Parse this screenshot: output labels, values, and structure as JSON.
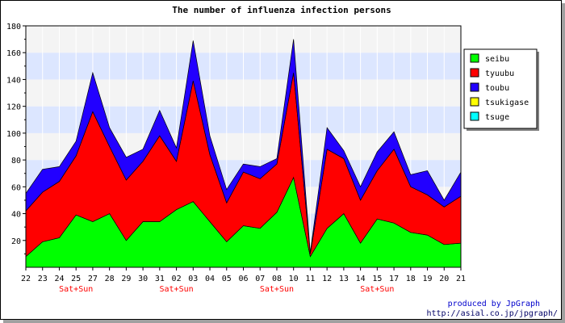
{
  "chart_data": {
    "type": "area",
    "stacked": true,
    "title": "The number of influenza infection persons",
    "xlabel": "",
    "ylabel": "",
    "ylim": [
      0,
      180
    ],
    "yticks": [
      20,
      40,
      60,
      80,
      100,
      120,
      140,
      160,
      180
    ],
    "categories": [
      "22",
      "23",
      "24",
      "25",
      "27",
      "28",
      "29",
      "30",
      "31",
      "02",
      "03",
      "04",
      "05",
      "06",
      "07",
      "08",
      "10",
      "11",
      "12",
      "13",
      "14",
      "15",
      "17",
      "18",
      "19",
      "20",
      "21"
    ],
    "x_annotations": [
      {
        "index": 3,
        "label": "Sat+Sun"
      },
      {
        "index": 9,
        "label": "Sat+Sun"
      },
      {
        "index": 15,
        "label": "Sat+Sun"
      },
      {
        "index": 21,
        "label": "Sat+Sun"
      }
    ],
    "series": [
      {
        "name": "seibu",
        "color": "#00ff00",
        "values": [
          8,
          19,
          22,
          39,
          34,
          40,
          20,
          34,
          34,
          43,
          49,
          34,
          19,
          31,
          29,
          41,
          67,
          8,
          29,
          40,
          18,
          36,
          33,
          26,
          24,
          17,
          18
        ]
      },
      {
        "name": "tyuubu",
        "color": "#ff0000",
        "values": [
          34,
          37,
          42,
          44,
          82,
          50,
          45,
          45,
          64,
          36,
          90,
          50,
          29,
          40,
          37,
          36,
          78,
          2,
          59,
          41,
          32,
          36,
          55,
          34,
          30,
          28,
          35
        ]
      },
      {
        "name": "toubu",
        "color": "#2200ff",
        "values": [
          13,
          17,
          11,
          11,
          29,
          14,
          17,
          9,
          19,
          10,
          30,
          14,
          10,
          6,
          9,
          4,
          25,
          1,
          16,
          6,
          10,
          14,
          13,
          9,
          18,
          5,
          18
        ]
      },
      {
        "name": "tsukigase",
        "color": "#ffff00",
        "values": [
          0,
          0,
          0,
          0,
          0,
          0,
          0,
          0,
          0,
          0,
          0,
          0,
          0,
          0,
          0,
          0,
          0,
          0,
          0,
          0,
          0,
          0,
          0,
          0,
          0,
          0,
          0
        ]
      },
      {
        "name": "tsuge",
        "color": "#00ffff",
        "values": [
          0,
          0,
          0,
          0,
          0,
          0,
          0,
          0,
          0,
          0,
          0,
          0,
          0,
          0,
          0,
          0,
          0,
          0,
          0,
          0,
          0,
          0,
          0,
          0,
          0,
          0,
          0
        ]
      }
    ],
    "grid": true,
    "legend_position": "right",
    "colors": {
      "band_light": "#f4f4f4",
      "band_blue": "#dce6ff"
    }
  },
  "footer": {
    "credit": "produced by JpGraph",
    "url": "http://asial.co.jp/jpgraph/"
  }
}
